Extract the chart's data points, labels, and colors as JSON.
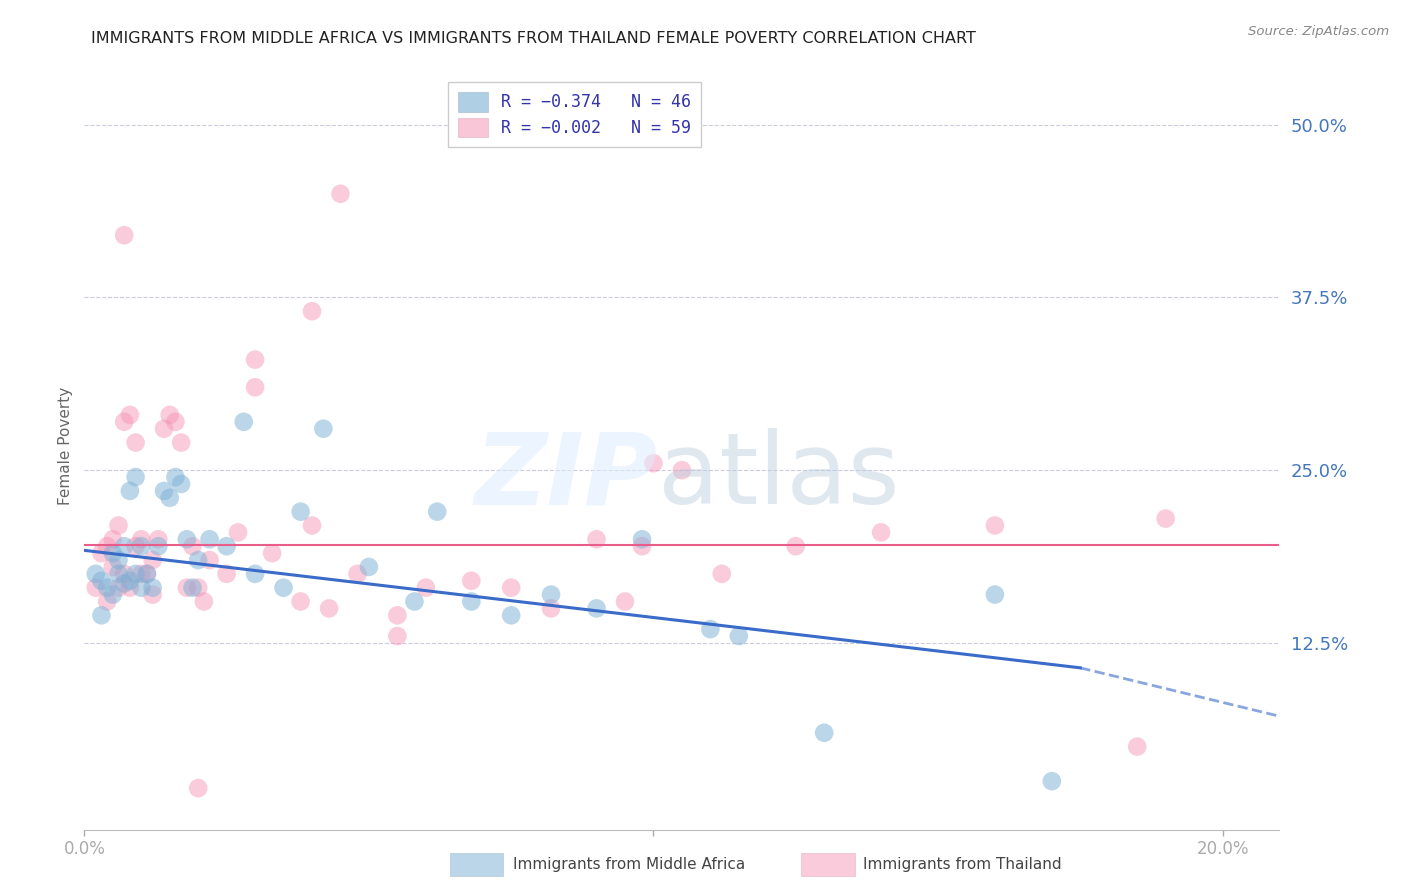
{
  "title": "IMMIGRANTS FROM MIDDLE AFRICA VS IMMIGRANTS FROM THAILAND FEMALE POVERTY CORRELATION CHART",
  "source": "Source: ZipAtlas.com",
  "ylabel": "Female Poverty",
  "right_yticks": [
    "50.0%",
    "37.5%",
    "25.0%",
    "12.5%"
  ],
  "right_ytick_vals": [
    0.5,
    0.375,
    0.25,
    0.125
  ],
  "xlim": [
    0.0,
    0.21
  ],
  "ylim": [
    -0.01,
    0.545
  ],
  "legend_label1": "Immigrants from Middle Africa",
  "legend_label2": "Immigrants from Thailand",
  "blue_color": "#7BAFD4",
  "pink_color": "#F48FB1",
  "blue_line_color": "#3A6BC9",
  "pink_line_color": "#E85D8A",
  "blue_scatter_x": [
    0.002,
    0.003,
    0.004,
    0.005,
    0.005,
    0.006,
    0.006,
    0.007,
    0.007,
    0.008,
    0.008,
    0.009,
    0.009,
    0.01,
    0.01,
    0.011,
    0.012,
    0.013,
    0.014,
    0.015,
    0.016,
    0.017,
    0.018,
    0.019,
    0.02,
    0.022,
    0.025,
    0.028,
    0.03,
    0.035,
    0.038,
    0.042,
    0.05,
    0.058,
    0.062,
    0.068,
    0.075,
    0.082,
    0.09,
    0.098,
    0.11,
    0.115,
    0.13,
    0.16,
    0.17,
    0.003
  ],
  "blue_scatter_y": [
    0.175,
    0.17,
    0.165,
    0.19,
    0.16,
    0.175,
    0.185,
    0.168,
    0.195,
    0.235,
    0.17,
    0.245,
    0.175,
    0.165,
    0.195,
    0.175,
    0.165,
    0.195,
    0.235,
    0.23,
    0.245,
    0.24,
    0.2,
    0.165,
    0.185,
    0.2,
    0.195,
    0.285,
    0.175,
    0.165,
    0.22,
    0.28,
    0.18,
    0.155,
    0.22,
    0.155,
    0.145,
    0.16,
    0.15,
    0.2,
    0.135,
    0.13,
    0.06,
    0.16,
    0.025,
    0.145
  ],
  "pink_scatter_x": [
    0.002,
    0.003,
    0.004,
    0.004,
    0.005,
    0.005,
    0.006,
    0.006,
    0.007,
    0.007,
    0.008,
    0.008,
    0.009,
    0.009,
    0.01,
    0.01,
    0.011,
    0.012,
    0.012,
    0.013,
    0.014,
    0.015,
    0.016,
    0.017,
    0.018,
    0.019,
    0.02,
    0.021,
    0.022,
    0.025,
    0.027,
    0.03,
    0.033,
    0.038,
    0.04,
    0.043,
    0.048,
    0.055,
    0.06,
    0.068,
    0.075,
    0.082,
    0.09,
    0.098,
    0.105,
    0.112,
    0.125,
    0.14,
    0.16,
    0.03,
    0.04,
    0.045,
    0.02,
    0.095,
    0.1,
    0.19,
    0.185,
    0.055,
    0.007
  ],
  "pink_scatter_y": [
    0.165,
    0.19,
    0.155,
    0.195,
    0.18,
    0.2,
    0.165,
    0.21,
    0.175,
    0.285,
    0.165,
    0.29,
    0.195,
    0.27,
    0.175,
    0.2,
    0.175,
    0.16,
    0.185,
    0.2,
    0.28,
    0.29,
    0.285,
    0.27,
    0.165,
    0.195,
    0.165,
    0.155,
    0.185,
    0.175,
    0.205,
    0.33,
    0.19,
    0.155,
    0.365,
    0.15,
    0.175,
    0.145,
    0.165,
    0.17,
    0.165,
    0.15,
    0.2,
    0.195,
    0.25,
    0.175,
    0.195,
    0.205,
    0.21,
    0.31,
    0.21,
    0.45,
    0.02,
    0.155,
    0.255,
    0.215,
    0.05,
    0.13,
    0.42
  ],
  "blue_trend_x0": 0.0,
  "blue_trend_x1": 0.175,
  "blue_trend_x2": 0.21,
  "blue_trend_y0": 0.192,
  "blue_trend_y1": 0.107,
  "blue_trend_y2": 0.072,
  "pink_trend_y": 0.196
}
